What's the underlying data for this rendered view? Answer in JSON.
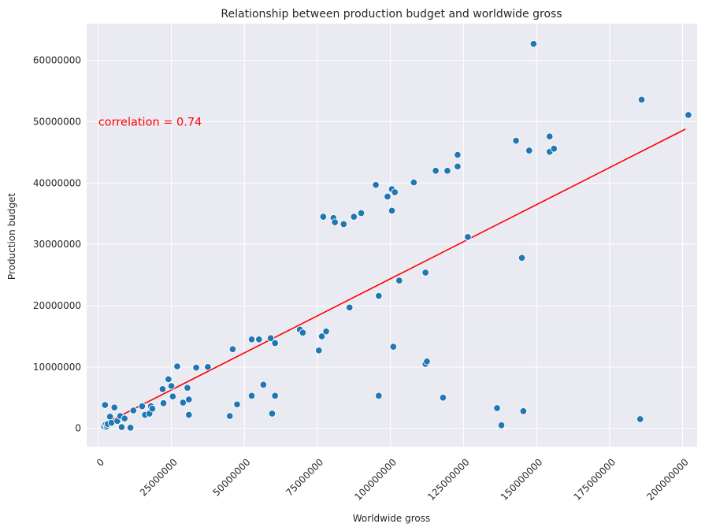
{
  "chart_data": {
    "type": "scatter",
    "title": "Relationship between production budget and worldwide gross",
    "xlabel": "Worldwide gross",
    "ylabel": "Production budget",
    "xlim": [
      -4000000,
      205000000
    ],
    "ylim": [
      -3000000,
      66000000
    ],
    "x_ticks": [
      0,
      25000000,
      50000000,
      75000000,
      100000000,
      125000000,
      150000000,
      175000000,
      200000000
    ],
    "x_tick_labels": [
      "0",
      "25000000",
      "50000000",
      "75000000",
      "100000000",
      "125000000",
      "150000000",
      "175000000",
      "200000000"
    ],
    "y_ticks": [
      0,
      10000000,
      20000000,
      30000000,
      40000000,
      50000000,
      60000000
    ],
    "y_tick_labels": [
      "0",
      "10000000",
      "20000000",
      "30000000",
      "40000000",
      "50000000",
      "60000000"
    ],
    "grid": true,
    "annotation": {
      "text": "correlation = 0.74",
      "x": 0,
      "y": 50000000,
      "color": "#ff0000"
    },
    "point_color": "#1f77b4",
    "line_color": "#ff0000",
    "background_color": "#eaeaf2",
    "regression_line": {
      "x": [
        2000000,
        201000000
      ],
      "y": [
        700000,
        48800000
      ]
    },
    "points": [
      {
        "x": 2000000,
        "y": 300000
      },
      {
        "x": 2500000,
        "y": 600000
      },
      {
        "x": 2800000,
        "y": 200000
      },
      {
        "x": 3000000,
        "y": 400000
      },
      {
        "x": 3200000,
        "y": 700000
      },
      {
        "x": 2300000,
        "y": 3800000
      },
      {
        "x": 4000000,
        "y": 1900000
      },
      {
        "x": 4500000,
        "y": 900000
      },
      {
        "x": 5500000,
        "y": 3400000
      },
      {
        "x": 6500000,
        "y": 1200000
      },
      {
        "x": 7500000,
        "y": 2000000
      },
      {
        "x": 8000000,
        "y": 200000
      },
      {
        "x": 9000000,
        "y": 1600000
      },
      {
        "x": 11000000,
        "y": 100000
      },
      {
        "x": 12000000,
        "y": 2900000
      },
      {
        "x": 15000000,
        "y": 3600000
      },
      {
        "x": 16000000,
        "y": 2200000
      },
      {
        "x": 17500000,
        "y": 2400000
      },
      {
        "x": 18000000,
        "y": 3600000
      },
      {
        "x": 18500000,
        "y": 3200000
      },
      {
        "x": 22000000,
        "y": 6400000
      },
      {
        "x": 22300000,
        "y": 4100000
      },
      {
        "x": 24000000,
        "y": 8000000
      },
      {
        "x": 25000000,
        "y": 6900000
      },
      {
        "x": 25500000,
        "y": 5200000
      },
      {
        "x": 27000000,
        "y": 10100000
      },
      {
        "x": 29000000,
        "y": 4200000
      },
      {
        "x": 30500000,
        "y": 6600000
      },
      {
        "x": 31000000,
        "y": 4700000
      },
      {
        "x": 31000000,
        "y": 2200000
      },
      {
        "x": 33500000,
        "y": 9900000
      },
      {
        "x": 37500000,
        "y": 10000000
      },
      {
        "x": 45000000,
        "y": 2000000
      },
      {
        "x": 46000000,
        "y": 12900000
      },
      {
        "x": 47500000,
        "y": 3900000
      },
      {
        "x": 52500000,
        "y": 14500000
      },
      {
        "x": 52500000,
        "y": 5300000
      },
      {
        "x": 55000000,
        "y": 14500000
      },
      {
        "x": 56500000,
        "y": 7100000
      },
      {
        "x": 59000000,
        "y": 14700000
      },
      {
        "x": 59500000,
        "y": 2400000
      },
      {
        "x": 60500000,
        "y": 13900000
      },
      {
        "x": 60500000,
        "y": 5300000
      },
      {
        "x": 69000000,
        "y": 16100000
      },
      {
        "x": 70000000,
        "y": 15600000
      },
      {
        "x": 75500000,
        "y": 12700000
      },
      {
        "x": 76500000,
        "y": 15000000
      },
      {
        "x": 78000000,
        "y": 15800000
      },
      {
        "x": 77000000,
        "y": 34500000
      },
      {
        "x": 80500000,
        "y": 34300000
      },
      {
        "x": 81000000,
        "y": 33600000
      },
      {
        "x": 84000000,
        "y": 33300000
      },
      {
        "x": 87500000,
        "y": 34500000
      },
      {
        "x": 90000000,
        "y": 35100000
      },
      {
        "x": 86000000,
        "y": 19700000
      },
      {
        "x": 95000000,
        "y": 39700000
      },
      {
        "x": 96000000,
        "y": 21600000
      },
      {
        "x": 96000000,
        "y": 5300000
      },
      {
        "x": 99000000,
        "y": 37800000
      },
      {
        "x": 100500000,
        "y": 39000000
      },
      {
        "x": 101500000,
        "y": 38500000
      },
      {
        "x": 100500000,
        "y": 35500000
      },
      {
        "x": 101000000,
        "y": 13300000
      },
      {
        "x": 103000000,
        "y": 24100000
      },
      {
        "x": 108000000,
        "y": 40100000
      },
      {
        "x": 112000000,
        "y": 25400000
      },
      {
        "x": 112000000,
        "y": 10500000
      },
      {
        "x": 112500000,
        "y": 10900000
      },
      {
        "x": 115500000,
        "y": 42000000
      },
      {
        "x": 119500000,
        "y": 42000000
      },
      {
        "x": 118000000,
        "y": 5000000
      },
      {
        "x": 123000000,
        "y": 44600000
      },
      {
        "x": 123000000,
        "y": 42700000
      },
      {
        "x": 126500000,
        "y": 31200000
      },
      {
        "x": 136500000,
        "y": 3300000
      },
      {
        "x": 138000000,
        "y": 500000
      },
      {
        "x": 143000000,
        "y": 46900000
      },
      {
        "x": 145000000,
        "y": 27800000
      },
      {
        "x": 145500000,
        "y": 2800000
      },
      {
        "x": 147500000,
        "y": 45300000
      },
      {
        "x": 149000000,
        "y": 62700000
      },
      {
        "x": 154500000,
        "y": 47600000
      },
      {
        "x": 154500000,
        "y": 45100000
      },
      {
        "x": 156000000,
        "y": 45600000
      },
      {
        "x": 186000000,
        "y": 53600000
      },
      {
        "x": 185500000,
        "y": 1500000
      },
      {
        "x": 202000000,
        "y": 51100000
      }
    ]
  }
}
